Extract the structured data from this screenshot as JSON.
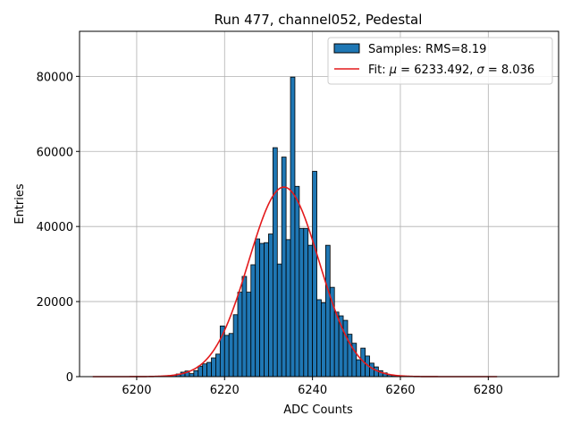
{
  "chart_data": {
    "type": "bar",
    "title": "Run 477, channel052, Pedestal",
    "xlabel": "ADC Counts",
    "ylabel": "Entries",
    "xlim": [
      6187,
      6296
    ],
    "ylim": [
      0,
      92000
    ],
    "xticks": [
      6200,
      6220,
      6240,
      6260,
      6280
    ],
    "yticks": [
      0,
      20000,
      40000,
      60000,
      80000
    ],
    "grid": true,
    "legend_position": "top-right",
    "colors": {
      "bars": "#1f77b4",
      "fit": "#e31a1c",
      "edge": "#000000"
    },
    "legend": {
      "samples": "Samples: RMS=8.19",
      "fit_prefix": "Fit: ",
      "mu_symbol": "μ",
      "mu_value": " = 6233.492, ",
      "sigma_symbol": "σ",
      "sigma_value": " = 8.036"
    },
    "histogram": {
      "bin_width": 1,
      "bins": [
        {
          "x": 6208,
          "y": 400
        },
        {
          "x": 6209,
          "y": 700
        },
        {
          "x": 6210,
          "y": 1200
        },
        {
          "x": 6211,
          "y": 1500
        },
        {
          "x": 6212,
          "y": 800
        },
        {
          "x": 6213,
          "y": 1600
        },
        {
          "x": 6214,
          "y": 2800
        },
        {
          "x": 6215,
          "y": 3400
        },
        {
          "x": 6216,
          "y": 3800
        },
        {
          "x": 6217,
          "y": 5000
        },
        {
          "x": 6218,
          "y": 6000
        },
        {
          "x": 6219,
          "y": 13500
        },
        {
          "x": 6220,
          "y": 11000
        },
        {
          "x": 6221,
          "y": 11500
        },
        {
          "x": 6222,
          "y": 16500
        },
        {
          "x": 6223,
          "y": 22500
        },
        {
          "x": 6224,
          "y": 26700
        },
        {
          "x": 6225,
          "y": 22500
        },
        {
          "x": 6226,
          "y": 29800
        },
        {
          "x": 6227,
          "y": 36700
        },
        {
          "x": 6228,
          "y": 35500
        },
        {
          "x": 6229,
          "y": 35700
        },
        {
          "x": 6230,
          "y": 38000
        },
        {
          "x": 6231,
          "y": 61000
        },
        {
          "x": 6232,
          "y": 30000
        },
        {
          "x": 6233,
          "y": 58500
        },
        {
          "x": 6234,
          "y": 36500
        },
        {
          "x": 6235,
          "y": 79800
        },
        {
          "x": 6236,
          "y": 50700
        },
        {
          "x": 6237,
          "y": 39500
        },
        {
          "x": 6238,
          "y": 39500
        },
        {
          "x": 6239,
          "y": 35000
        },
        {
          "x": 6240,
          "y": 54700
        },
        {
          "x": 6241,
          "y": 20500
        },
        {
          "x": 6242,
          "y": 19700
        },
        {
          "x": 6243,
          "y": 35000
        },
        {
          "x": 6244,
          "y": 23800
        },
        {
          "x": 6245,
          "y": 17200
        },
        {
          "x": 6246,
          "y": 16200
        },
        {
          "x": 6247,
          "y": 15000
        },
        {
          "x": 6248,
          "y": 11300
        },
        {
          "x": 6249,
          "y": 8900
        },
        {
          "x": 6250,
          "y": 4500
        },
        {
          "x": 6251,
          "y": 7600
        },
        {
          "x": 6252,
          "y": 5500
        },
        {
          "x": 6253,
          "y": 3600
        },
        {
          "x": 6254,
          "y": 2600
        },
        {
          "x": 6255,
          "y": 1600
        },
        {
          "x": 6256,
          "y": 1000
        },
        {
          "x": 6257,
          "y": 500
        },
        {
          "x": 6258,
          "y": 300
        }
      ]
    },
    "fit": {
      "type": "gaussian",
      "mu": 6233.492,
      "sigma": 8.036,
      "amplitude": 50500,
      "x_range": [
        6190,
        6282
      ]
    }
  }
}
